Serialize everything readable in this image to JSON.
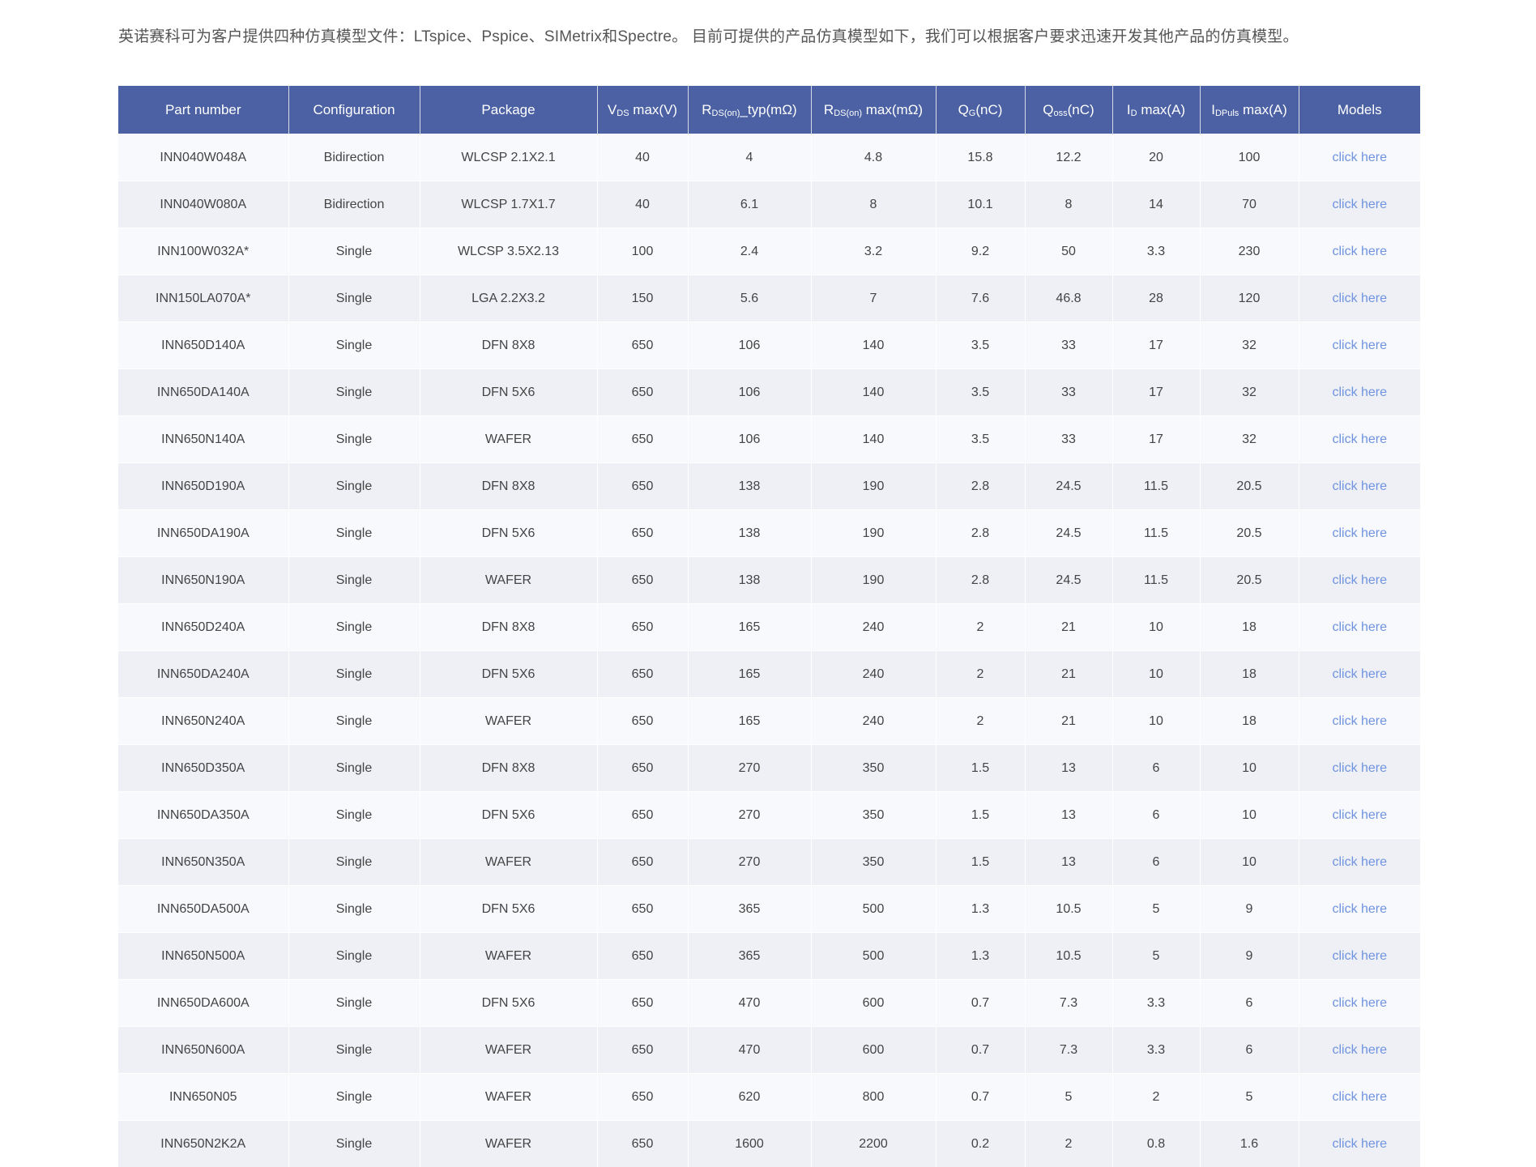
{
  "intro": "英诺赛科可为客户提供四种仿真模型文件：LTspice、Pspice、SIMetrix和Spectre。 目前可提供的产品仿真模型如下，我们可以根据客户要求迅速开发其他产品的仿真模型。",
  "table": {
    "headers": [
      {
        "main": "Part number",
        "sub": "",
        "rest": ""
      },
      {
        "main": "Configuration",
        "sub": "",
        "rest": ""
      },
      {
        "main": "Package",
        "sub": "",
        "rest": ""
      },
      {
        "main": "V",
        "sub": "DS",
        "rest": " max(V)"
      },
      {
        "main": "R",
        "sub": "DS(on)",
        "rest": "_typ(mΩ)"
      },
      {
        "main": "R",
        "sub": "DS(on)",
        "rest": " max(mΩ)"
      },
      {
        "main": "Q",
        "sub": "G",
        "rest": "(nC)"
      },
      {
        "main": "Q",
        "sub": "oss",
        "rest": "(nC)"
      },
      {
        "main": "I",
        "sub": "D",
        "rest": " max(A)"
      },
      {
        "main": "I",
        "sub": "DPuls",
        "rest": " max(A)"
      },
      {
        "main": "Models",
        "sub": "",
        "rest": ""
      }
    ],
    "rows": [
      [
        "INN040W048A",
        "Bidirection",
        "WLCSP 2.1X2.1",
        "40",
        "4",
        "4.8",
        "15.8",
        "12.2",
        "20",
        "100",
        "click here"
      ],
      [
        "INN040W080A",
        "Bidirection",
        "WLCSP 1.7X1.7",
        "40",
        "6.1",
        "8",
        "10.1",
        "8",
        "14",
        "70",
        "click here"
      ],
      [
        "INN100W032A*",
        "Single",
        "WLCSP 3.5X2.13",
        "100",
        "2.4",
        "3.2",
        "9.2",
        "50",
        "3.3",
        "230",
        "click here"
      ],
      [
        "INN150LA070A*",
        "Single",
        "LGA 2.2X3.2",
        "150",
        "5.6",
        "7",
        "7.6",
        "46.8",
        "28",
        "120",
        "click here"
      ],
      [
        "INN650D140A",
        "Single",
        "DFN 8X8",
        "650",
        "106",
        "140",
        "3.5",
        "33",
        "17",
        "32",
        "click here"
      ],
      [
        "INN650DA140A",
        "Single",
        "DFN 5X6",
        "650",
        "106",
        "140",
        "3.5",
        "33",
        "17",
        "32",
        "click here"
      ],
      [
        "INN650N140A",
        "Single",
        "WAFER",
        "650",
        "106",
        "140",
        "3.5",
        "33",
        "17",
        "32",
        "click here"
      ],
      [
        "INN650D190A",
        "Single",
        "DFN 8X8",
        "650",
        "138",
        "190",
        "2.8",
        "24.5",
        "11.5",
        "20.5",
        "click here"
      ],
      [
        "INN650DA190A",
        "Single",
        "DFN 5X6",
        "650",
        "138",
        "190",
        "2.8",
        "24.5",
        "11.5",
        "20.5",
        "click here"
      ],
      [
        "INN650N190A",
        "Single",
        "WAFER",
        "650",
        "138",
        "190",
        "2.8",
        "24.5",
        "11.5",
        "20.5",
        "click here"
      ],
      [
        "INN650D240A",
        "Single",
        "DFN 8X8",
        "650",
        "165",
        "240",
        "2",
        "21",
        "10",
        "18",
        "click here"
      ],
      [
        "INN650DA240A",
        "Single",
        "DFN 5X6",
        "650",
        "165",
        "240",
        "2",
        "21",
        "10",
        "18",
        "click here"
      ],
      [
        "INN650N240A",
        "Single",
        "WAFER",
        "650",
        "165",
        "240",
        "2",
        "21",
        "10",
        "18",
        "click here"
      ],
      [
        "INN650D350A",
        "Single",
        "DFN 8X8",
        "650",
        "270",
        "350",
        "1.5",
        "13",
        "6",
        "10",
        "click here"
      ],
      [
        "INN650DA350A",
        "Single",
        "DFN 5X6",
        "650",
        "270",
        "350",
        "1.5",
        "13",
        "6",
        "10",
        "click here"
      ],
      [
        "INN650N350A",
        "Single",
        "WAFER",
        "650",
        "270",
        "350",
        "1.5",
        "13",
        "6",
        "10",
        "click here"
      ],
      [
        "INN650DA500A",
        "Single",
        "DFN 5X6",
        "650",
        "365",
        "500",
        "1.3",
        "10.5",
        "5",
        "9",
        "click here"
      ],
      [
        "INN650N500A",
        "Single",
        "WAFER",
        "650",
        "365",
        "500",
        "1.3",
        "10.5",
        "5",
        "9",
        "click here"
      ],
      [
        "INN650DA600A",
        "Single",
        "DFN 5X6",
        "650",
        "470",
        "600",
        "0.7",
        "7.3",
        "3.3",
        "6",
        "click here"
      ],
      [
        "INN650N600A",
        "Single",
        "WAFER",
        "650",
        "470",
        "600",
        "0.7",
        "7.3",
        "3.3",
        "6",
        "click here"
      ],
      [
        "INN650N05",
        "Single",
        "WAFER",
        "650",
        "620",
        "800",
        "0.7",
        "5",
        "2",
        "5",
        "click here"
      ],
      [
        "INN650N2K2A",
        "Single",
        "WAFER",
        "650",
        "1600",
        "2200",
        "0.2",
        "2",
        "0.8",
        "1.6",
        "click here"
      ]
    ]
  },
  "colors": {
    "header_bg": "#4b61a4",
    "row_odd": "#f8f9fc",
    "row_even": "#eef0f6",
    "link": "#6f93e0"
  }
}
